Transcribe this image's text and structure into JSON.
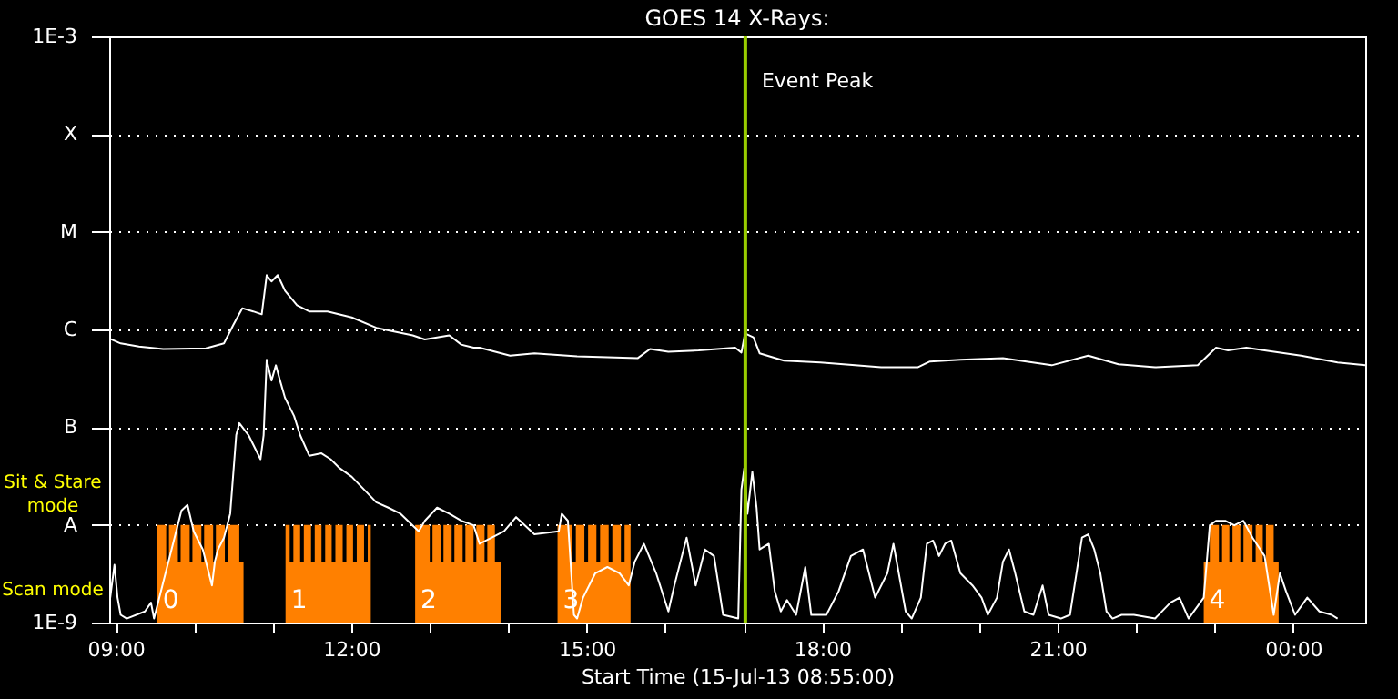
{
  "chart_data": {
    "type": "line",
    "title": "GOES 14 X-Rays:",
    "xlabel": "Start Time (15-Jul-13 08:55:00)",
    "xlim": [
      8.917,
      24.917
    ],
    "xticks": [
      {
        "value": 9,
        "label": "09:00"
      },
      {
        "value": 10,
        "label": null
      },
      {
        "value": 11,
        "label": null
      },
      {
        "value": 12,
        "label": "12:00"
      },
      {
        "value": 13,
        "label": null
      },
      {
        "value": 14,
        "label": null
      },
      {
        "value": 15,
        "label": "15:00"
      },
      {
        "value": 16,
        "label": null
      },
      {
        "value": 17,
        "label": null
      },
      {
        "value": 18,
        "label": "18:00"
      },
      {
        "value": 19,
        "label": null
      },
      {
        "value": 20,
        "label": null
      },
      {
        "value": 21,
        "label": "21:00"
      },
      {
        "value": 22,
        "label": null
      },
      {
        "value": 23,
        "label": null
      },
      {
        "value": 24,
        "label": "00:00"
      }
    ],
    "ylim": [
      1e-09,
      0.001
    ],
    "yticks": [
      {
        "value": 1e-09,
        "label": "1E-9"
      },
      {
        "value": 1e-08,
        "label": "A"
      },
      {
        "value": 1e-07,
        "label": "B"
      },
      {
        "value": 1e-06,
        "label": "C"
      },
      {
        "value": 1e-05,
        "label": "M"
      },
      {
        "value": 0.0001,
        "label": "X"
      },
      {
        "value": 0.001,
        "label": "1E-3"
      }
    ],
    "log": true,
    "grid": "y",
    "line_style": "solid",
    "series": [
      {
        "type": "area",
        "color": "#ff8000",
        "x": [
          9.528,
          9.643,
          9.678,
          9.792,
          9.827,
          9.942,
          9.977,
          10.091,
          10.126,
          10.241,
          10.276,
          10.39,
          10.425,
          10.574,
          10.628,
          11.163,
          11.216,
          11.263,
          11.349,
          11.396,
          11.488,
          11.535,
          11.621,
          11.668,
          11.751,
          11.798,
          11.891,
          11.938,
          12.023,
          12.07,
          12.163,
          12.21,
          12.249,
          12.814,
          13.0,
          13.035,
          13.14,
          13.175,
          13.279,
          13.314,
          13.419,
          13.454,
          13.558,
          13.593,
          13.698,
          13.733,
          13.83,
          13.907,
          14.628,
          14.814,
          14.861,
          14.97,
          15.017,
          15.123,
          15.17,
          15.279,
          15.326,
          15.435,
          15.482,
          15.558,
          22.86,
          22.937,
          23.053,
          23.093,
          23.186,
          23.226,
          23.326,
          23.366,
          23.481,
          23.521,
          23.612,
          23.652,
          23.751,
          23.814
        ],
        "values": [
          1e-08,
          4.2e-09,
          1e-08,
          4.2e-09,
          1e-08,
          4.2e-09,
          1e-08,
          4.2e-09,
          1e-08,
          4.2e-09,
          1e-08,
          4.2e-09,
          1e-08,
          4.2e-09,
          1e-09,
          1e-08,
          4.2e-09,
          1e-08,
          4.2e-09,
          1e-08,
          4.2e-09,
          1e-08,
          4.2e-09,
          1e-08,
          4.2e-09,
          1e-08,
          4.2e-09,
          1e-08,
          4.2e-09,
          1e-08,
          4.2e-09,
          1e-08,
          1e-09,
          1e-08,
          4.2e-09,
          1e-08,
          4.2e-09,
          1e-08,
          4.2e-09,
          1e-08,
          4.2e-09,
          1e-08,
          4.2e-09,
          1e-08,
          4.2e-09,
          1e-08,
          4.2e-09,
          1e-09,
          1e-08,
          4.2e-09,
          1e-08,
          4.2e-09,
          1e-08,
          4.2e-09,
          1e-08,
          4.2e-09,
          1e-08,
          4.2e-09,
          1e-08,
          1e-09,
          4.2e-09,
          1e-08,
          4.2e-09,
          1e-08,
          4.2e-09,
          1e-08,
          4.2e-09,
          1e-08,
          4.2e-09,
          1e-08,
          4.2e-09,
          1e-08,
          4.2e-09,
          1e-09
        ]
      },
      {
        "color": "#ffffff",
        "x": [
          8.917,
          9.063,
          9.295,
          9.605,
          10.147,
          10.379,
          10.495,
          10.612,
          10.751,
          10.86,
          10.923,
          10.984,
          11.063,
          11.156,
          11.309,
          11.465,
          11.698,
          12.007,
          12.319,
          12.784,
          12.937,
          13.249,
          13.402,
          13.558,
          13.635,
          14.023,
          14.333,
          14.877,
          15.651,
          15.807,
          16.04,
          16.426,
          16.891,
          16.97,
          17.016,
          17.123,
          17.202,
          17.512,
          17.977,
          18.751,
          19.216,
          19.372,
          19.76,
          20.302,
          20.923,
          21.388,
          21.774,
          22.24,
          22.784,
          23.016,
          23.17,
          23.402,
          23.635,
          24.1,
          24.565,
          24.917
        ],
        "values": [
          8.1e-07,
          7.2e-07,
          6.7e-07,
          6.3e-07,
          6.4e-07,
          7.2e-07,
          1.1e-06,
          1.65e-06,
          1.53e-06,
          1.43e-06,
          3.6e-06,
          3.1e-06,
          3.6e-06,
          2.5e-06,
          1.77e-06,
          1.53e-06,
          1.53e-06,
          1.33e-06,
          1.04e-06,
          8.7e-07,
          7.9e-07,
          8.7e-07,
          7e-07,
          6.5e-07,
          6.5e-07,
          5.4e-07,
          5.7e-07,
          5.3e-07,
          5.1e-07,
          6.3e-07,
          5.9e-07,
          6.1e-07,
          6.5e-07,
          5.8e-07,
          9.1e-07,
          8.3e-07,
          5.7e-07,
          4.8e-07,
          4.6e-07,
          4.1e-07,
          4.1e-07,
          4.7e-07,
          4.9e-07,
          5.1e-07,
          4.3e-07,
          5.4e-07,
          4.4e-07,
          4.1e-07,
          4.3e-07,
          6.5e-07,
          6.1e-07,
          6.5e-07,
          6.1e-07,
          5.4e-07,
          4.6e-07,
          4.3e-07
        ]
      },
      {
        "color": "#ffffff",
        "x": [
          8.93,
          8.984,
          9.023,
          9.063,
          9.14,
          9.372,
          9.449,
          9.488,
          9.837,
          9.914,
          9.993,
          10.109,
          10.186,
          10.226,
          10.263,
          10.302,
          10.379,
          10.458,
          10.535,
          10.574,
          10.691,
          10.844,
          10.884,
          10.923,
          10.984,
          11.04,
          11.093,
          11.156,
          11.272,
          11.349,
          11.465,
          11.621,
          11.737,
          11.853,
          12.007,
          12.163,
          12.319,
          12.472,
          12.628,
          12.86,
          12.937,
          13.093,
          13.249,
          13.402,
          13.558,
          13.635,
          13.791,
          13.947,
          14.1,
          14.333,
          14.644,
          14.682,
          14.76,
          14.837,
          14.877,
          14.953,
          15.109,
          15.263,
          15.419,
          15.535,
          15.612,
          15.728,
          15.884,
          16.04,
          16.116,
          16.272,
          16.388,
          16.505,
          16.621,
          16.737,
          16.93,
          16.97,
          17.007,
          17.047,
          17.109,
          17.163,
          17.202,
          17.319,
          17.395,
          17.472,
          17.551,
          17.667,
          17.784,
          17.86,
          18.053,
          18.209,
          18.365,
          18.519,
          18.674,
          18.83,
          18.907,
          19.063,
          19.14,
          19.256,
          19.333,
          19.412,
          19.488,
          19.565,
          19.644,
          19.76,
          19.914,
          20.03,
          20.109,
          20.226,
          20.302,
          20.379,
          20.458,
          20.574,
          20.691,
          20.807,
          20.884,
          21.04,
          21.156,
          21.309,
          21.388,
          21.465,
          21.542,
          21.621,
          21.698,
          21.814,
          21.97,
          22.24,
          22.435,
          22.551,
          22.667,
          22.86,
          22.937,
          23.016,
          23.133,
          23.249,
          23.365,
          23.481,
          23.635,
          23.751,
          23.83,
          23.907,
          24.023,
          24.179,
          24.333,
          24.488,
          24.565
        ],
        "values": [
          1.8e-09,
          3.9e-09,
          1.8e-09,
          1.2e-09,
          1.1e-09,
          1.3e-09,
          1.6e-09,
          1.1e-09,
          1.4e-08,
          1.6e-08,
          8.6e-09,
          5.6e-09,
          3.2e-09,
          2.4e-09,
          4.2e-09,
          5.6e-09,
          7.4e-09,
          1.3e-08,
          8.3e-08,
          1.1e-07,
          8.3e-08,
          4.7e-08,
          8.3e-08,
          4.9e-07,
          3e-07,
          4.3e-07,
          3e-07,
          2e-07,
          1.3e-07,
          8.3e-08,
          5.1e-08,
          5.4e-08,
          4.7e-08,
          3.8e-08,
          3.1e-08,
          2.3e-08,
          1.7e-08,
          1.5e-08,
          1.3e-08,
          8.6e-09,
          1.1e-08,
          1.5e-08,
          1.3e-08,
          1.1e-08,
          9.9e-09,
          6.4e-09,
          7.4e-09,
          8.6e-09,
          1.2e-08,
          8e-09,
          8.6e-09,
          1.3e-08,
          1.1e-08,
          1.2e-09,
          1.1e-09,
          1.8e-09,
          3.2e-09,
          3.7e-09,
          3.2e-09,
          2.4e-09,
          4.2e-09,
          6.4e-09,
          3.2e-09,
          1.3e-09,
          2.4e-09,
          7.4e-09,
          2.4e-09,
          5.6e-09,
          4.8e-09,
          1.2e-09,
          1.1e-09,
          2.3e-08,
          3.8e-08,
          1.3e-08,
          3.5e-08,
          1.5e-08,
          5.6e-09,
          6.4e-09,
          2.1e-09,
          1.3e-09,
          1.7e-09,
          1.2e-09,
          3.7e-09,
          1.2e-09,
          1.2e-09,
          2.1e-09,
          4.8e-09,
          5.6e-09,
          1.8e-09,
          3.2e-09,
          6.4e-09,
          1.3e-09,
          1.1e-09,
          1.8e-09,
          6.4e-09,
          6.9e-09,
          4.8e-09,
          6.4e-09,
          6.9e-09,
          3.2e-09,
          2.4e-09,
          1.8e-09,
          1.2e-09,
          1.8e-09,
          4.2e-09,
          5.6e-09,
          3.2e-09,
          1.3e-09,
          1.2e-09,
          2.4e-09,
          1.2e-09,
          1.1e-09,
          1.2e-09,
          7.4e-09,
          8e-09,
          5.6e-09,
          3.2e-09,
          1.3e-09,
          1.1e-09,
          1.2e-09,
          1.2e-09,
          1.1e-09,
          1.6e-09,
          1.8e-09,
          1.1e-09,
          1.8e-09,
          9.9e-09,
          1.1e-08,
          1.1e-08,
          9.9e-09,
          1.1e-08,
          7.4e-09,
          4.8e-09,
          1.2e-09,
          3.2e-09,
          2.1e-09,
          1.2e-09,
          1.8e-09,
          1.3e-09,
          1.2e-09,
          1.1e-09
        ]
      }
    ],
    "ref_lines": [
      {
        "axis": "x",
        "value": 17.02,
        "label": "Event Peak",
        "color": "#99cc00"
      }
    ],
    "annotations": [
      "Sit & Stare mode",
      "Scan mode",
      "0",
      "1",
      "2",
      "3",
      "4"
    ]
  }
}
